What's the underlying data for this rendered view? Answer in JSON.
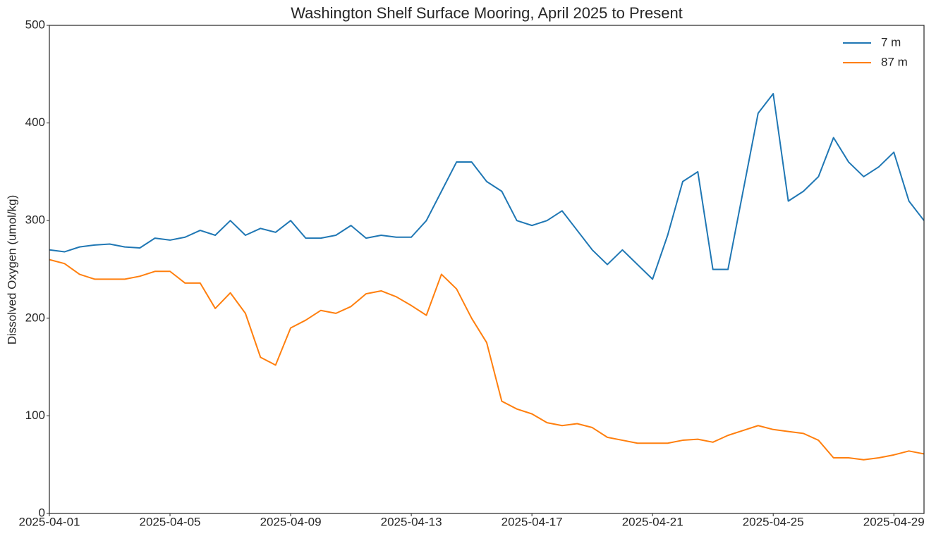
{
  "chart_data": {
    "type": "line",
    "title": "Washington Shelf Surface Mooring, April 2025 to Present",
    "y_label": "Dissolved Oxygen (umol/kg)",
    "x": [
      "2025-04-01 00:00",
      "2025-04-01 12:00",
      "2025-04-02 00:00",
      "2025-04-02 12:00",
      "2025-04-03 00:00",
      "2025-04-03 12:00",
      "2025-04-04 00:00",
      "2025-04-04 12:00",
      "2025-04-05 00:00",
      "2025-04-05 12:00",
      "2025-04-06 00:00",
      "2025-04-06 12:00",
      "2025-04-07 00:00",
      "2025-04-07 12:00",
      "2025-04-08 00:00",
      "2025-04-08 12:00",
      "2025-04-09 00:00",
      "2025-04-09 12:00",
      "2025-04-10 00:00",
      "2025-04-10 12:00",
      "2025-04-11 00:00",
      "2025-04-11 12:00",
      "2025-04-12 00:00",
      "2025-04-12 12:00",
      "2025-04-13 00:00",
      "2025-04-13 12:00",
      "2025-04-14 00:00",
      "2025-04-14 12:00",
      "2025-04-15 00:00",
      "2025-04-15 12:00",
      "2025-04-16 00:00",
      "2025-04-16 12:00",
      "2025-04-17 00:00",
      "2025-04-17 12:00",
      "2025-04-18 00:00",
      "2025-04-18 12:00",
      "2025-04-19 00:00",
      "2025-04-19 12:00",
      "2025-04-20 00:00",
      "2025-04-20 12:00",
      "2025-04-21 00:00",
      "2025-04-21 12:00",
      "2025-04-22 00:00",
      "2025-04-22 12:00",
      "2025-04-23 00:00",
      "2025-04-23 12:00",
      "2025-04-24 00:00",
      "2025-04-24 12:00",
      "2025-04-25 00:00",
      "2025-04-25 12:00",
      "2025-04-26 00:00",
      "2025-04-26 12:00",
      "2025-04-27 00:00",
      "2025-04-27 12:00",
      "2025-04-28 00:00",
      "2025-04-28 12:00",
      "2025-04-29 00:00",
      "2025-04-29 12:00",
      "2025-04-30 00:00"
    ],
    "series": [
      {
        "name": "7 m",
        "color": "#1f77b4",
        "values": [
          270,
          268,
          273,
          275,
          276,
          273,
          272,
          282,
          280,
          283,
          290,
          285,
          300,
          285,
          292,
          288,
          300,
          282,
          282,
          285,
          295,
          282,
          285,
          283,
          283,
          300,
          330,
          360,
          360,
          340,
          330,
          300,
          295,
          300,
          310,
          290,
          270,
          255,
          270,
          255,
          240,
          285,
          340,
          350,
          250,
          250,
          330,
          410,
          430,
          320,
          330,
          345,
          385,
          360,
          345,
          355,
          370,
          320,
          300
        ]
      },
      {
        "name": "87 m",
        "color": "#ff7f0e",
        "values": [
          260,
          256,
          245,
          240,
          240,
          240,
          243,
          248,
          248,
          236,
          236,
          210,
          226,
          205,
          160,
          152,
          190,
          198,
          208,
          205,
          212,
          225,
          228,
          222,
          213,
          203,
          245,
          230,
          200,
          175,
          115,
          107,
          102,
          93,
          90,
          92,
          88,
          78,
          75,
          72,
          72,
          72,
          75,
          76,
          73,
          80,
          85,
          90,
          86,
          84,
          82,
          75,
          57,
          57,
          55,
          57,
          60,
          64,
          61
        ]
      }
    ],
    "xlim": [
      "2025-04-01",
      "2025-04-30"
    ],
    "xticks": [
      "2025-04-01",
      "2025-04-05",
      "2025-04-09",
      "2025-04-13",
      "2025-04-17",
      "2025-04-21",
      "2025-04-25",
      "2025-04-29"
    ],
    "ylim": [
      0,
      500
    ],
    "yticks": [
      0,
      100,
      200,
      300,
      400,
      500
    ],
    "legend": "upper right"
  }
}
